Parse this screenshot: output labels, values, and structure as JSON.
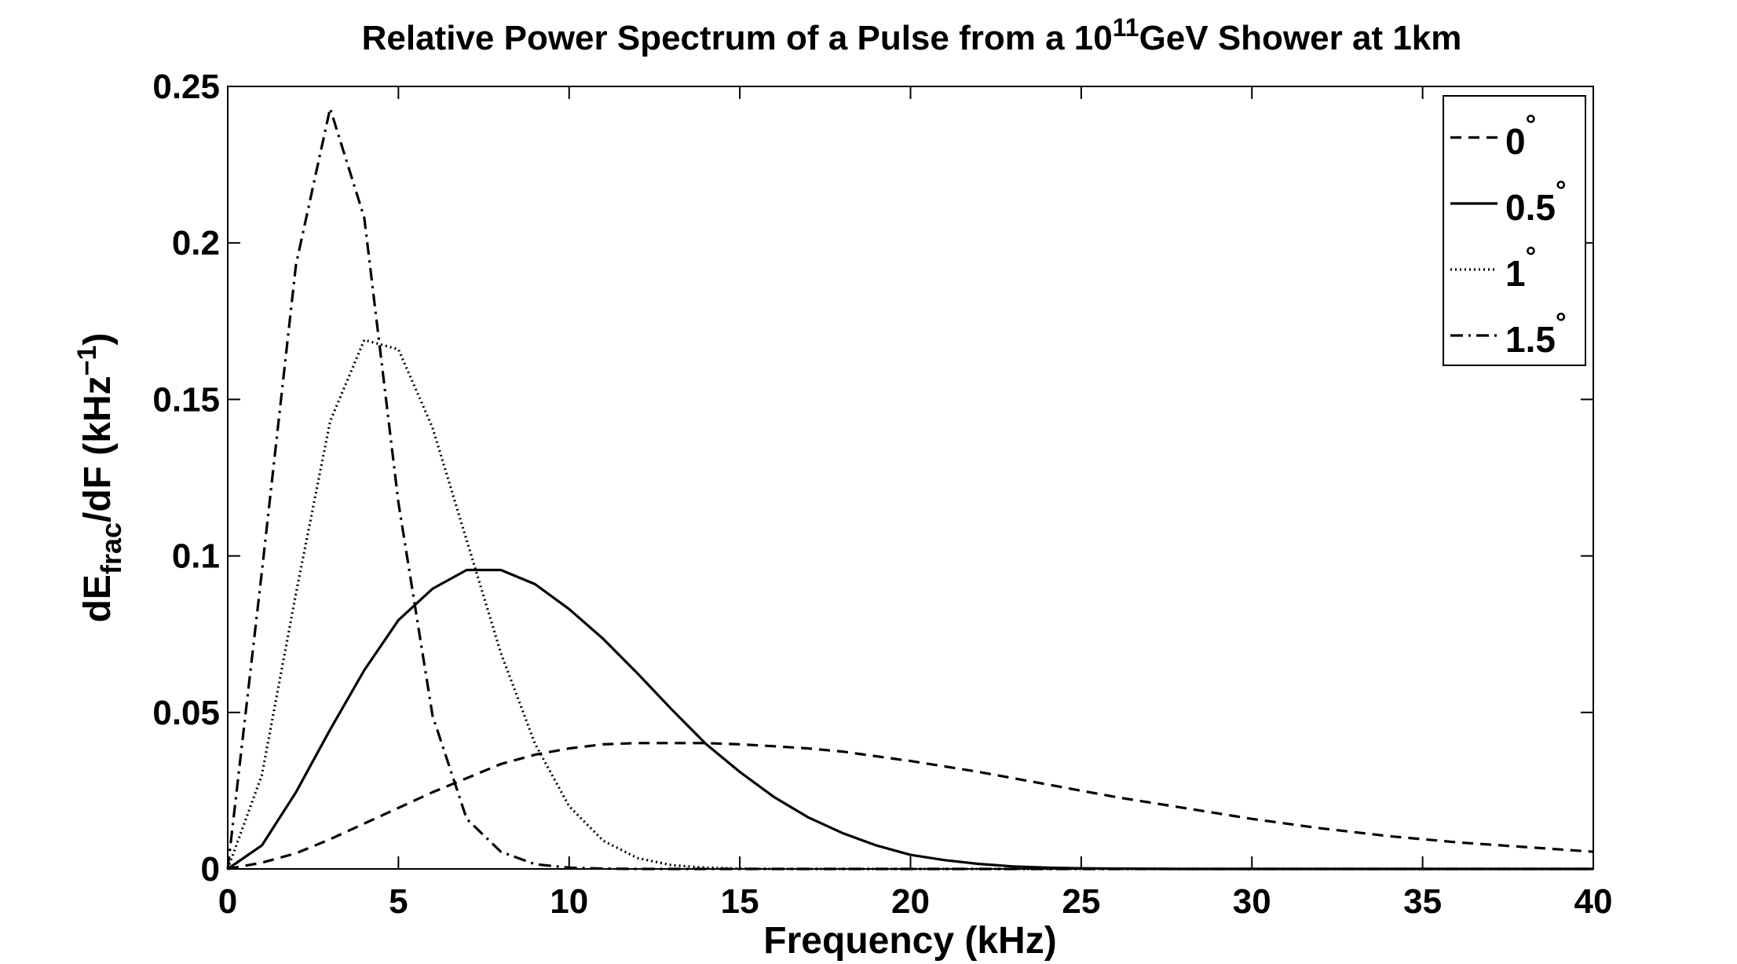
{
  "chart_data": {
    "type": "line",
    "title": {
      "prefix": "Relative Power Spectrum of a Pulse from a 10",
      "superscript": "11",
      "suffix": "GeV Shower at 1km"
    },
    "xlabel": "Frequency (kHz)",
    "ylabel": {
      "a": "dE",
      "sub": "frac",
      "b": "/dF (kHz",
      "sup": "−1",
      "c": ")"
    },
    "xlim": [
      0,
      40
    ],
    "ylim": [
      0,
      0.25
    ],
    "x_ticks": [
      0,
      5,
      10,
      15,
      20,
      25,
      30,
      35,
      40
    ],
    "x_tick_labels": [
      "0",
      "5",
      "10",
      "15",
      "20",
      "25",
      "30",
      "35",
      "40"
    ],
    "y_ticks": [
      0,
      0.05,
      0.1,
      0.15,
      0.2,
      0.25
    ],
    "y_tick_labels": [
      "0",
      "0.05",
      "0.1",
      "0.15",
      "0.2",
      "0.25"
    ],
    "grid": false,
    "legend_position": "top-right",
    "color": "#000000",
    "series": [
      {
        "name": "0",
        "degree_symbol": "°",
        "style": "dashed",
        "x": [
          0,
          1,
          2,
          3,
          4,
          5,
          6,
          7,
          8,
          9,
          10,
          11,
          12,
          13,
          14,
          15,
          16,
          17,
          18,
          19,
          20,
          22,
          24,
          26,
          28,
          30,
          32,
          34,
          36,
          38,
          40
        ],
        "y": [
          0,
          0.002,
          0.005,
          0.0095,
          0.0145,
          0.0195,
          0.0245,
          0.029,
          0.0335,
          0.0365,
          0.0385,
          0.0398,
          0.0402,
          0.0402,
          0.0402,
          0.0398,
          0.0392,
          0.0385,
          0.0375,
          0.036,
          0.0345,
          0.031,
          0.027,
          0.023,
          0.0195,
          0.016,
          0.013,
          0.0105,
          0.0085,
          0.007,
          0.0055
        ]
      },
      {
        "name": "0.5",
        "degree_symbol": "°",
        "style": "solid",
        "x": [
          0,
          1,
          2,
          3,
          4,
          5,
          6,
          7,
          8,
          9,
          10,
          11,
          12,
          13,
          14,
          15,
          16,
          17,
          18,
          19,
          20,
          21,
          22,
          23,
          24,
          25,
          26,
          28,
          30,
          40
        ],
        "y": [
          0,
          0.0075,
          0.0245,
          0.0445,
          0.0635,
          0.0795,
          0.0895,
          0.0955,
          0.0955,
          0.091,
          0.083,
          0.0735,
          0.0625,
          0.051,
          0.04,
          0.031,
          0.023,
          0.0165,
          0.0115,
          0.0075,
          0.0045,
          0.0028,
          0.0016,
          0.0008,
          0.0004,
          0.0002,
          0.0001,
          0,
          0,
          0
        ]
      },
      {
        "name": "1",
        "degree_symbol": "°",
        "style": "dotted",
        "x": [
          0,
          1,
          2,
          3,
          4,
          5,
          6,
          7,
          8,
          9,
          10,
          11,
          12,
          13,
          14,
          15,
          16,
          17,
          18,
          20,
          40
        ],
        "y": [
          0,
          0.03,
          0.088,
          0.143,
          0.169,
          0.166,
          0.141,
          0.105,
          0.069,
          0.04,
          0.02,
          0.009,
          0.0035,
          0.0012,
          0.0004,
          0.0001,
          0,
          0,
          0,
          0,
          0
        ]
      },
      {
        "name": "1.5",
        "degree_symbol": "°",
        "style": "dashdot",
        "x": [
          0,
          1,
          2,
          3,
          4,
          5,
          6,
          7,
          8,
          9,
          10,
          11,
          12,
          13,
          14,
          16,
          40
        ],
        "y": [
          0,
          0.095,
          0.193,
          0.243,
          0.208,
          0.117,
          0.049,
          0.016,
          0.0055,
          0.0015,
          0.0004,
          0.0001,
          0,
          0,
          0,
          0,
          0
        ]
      }
    ]
  }
}
